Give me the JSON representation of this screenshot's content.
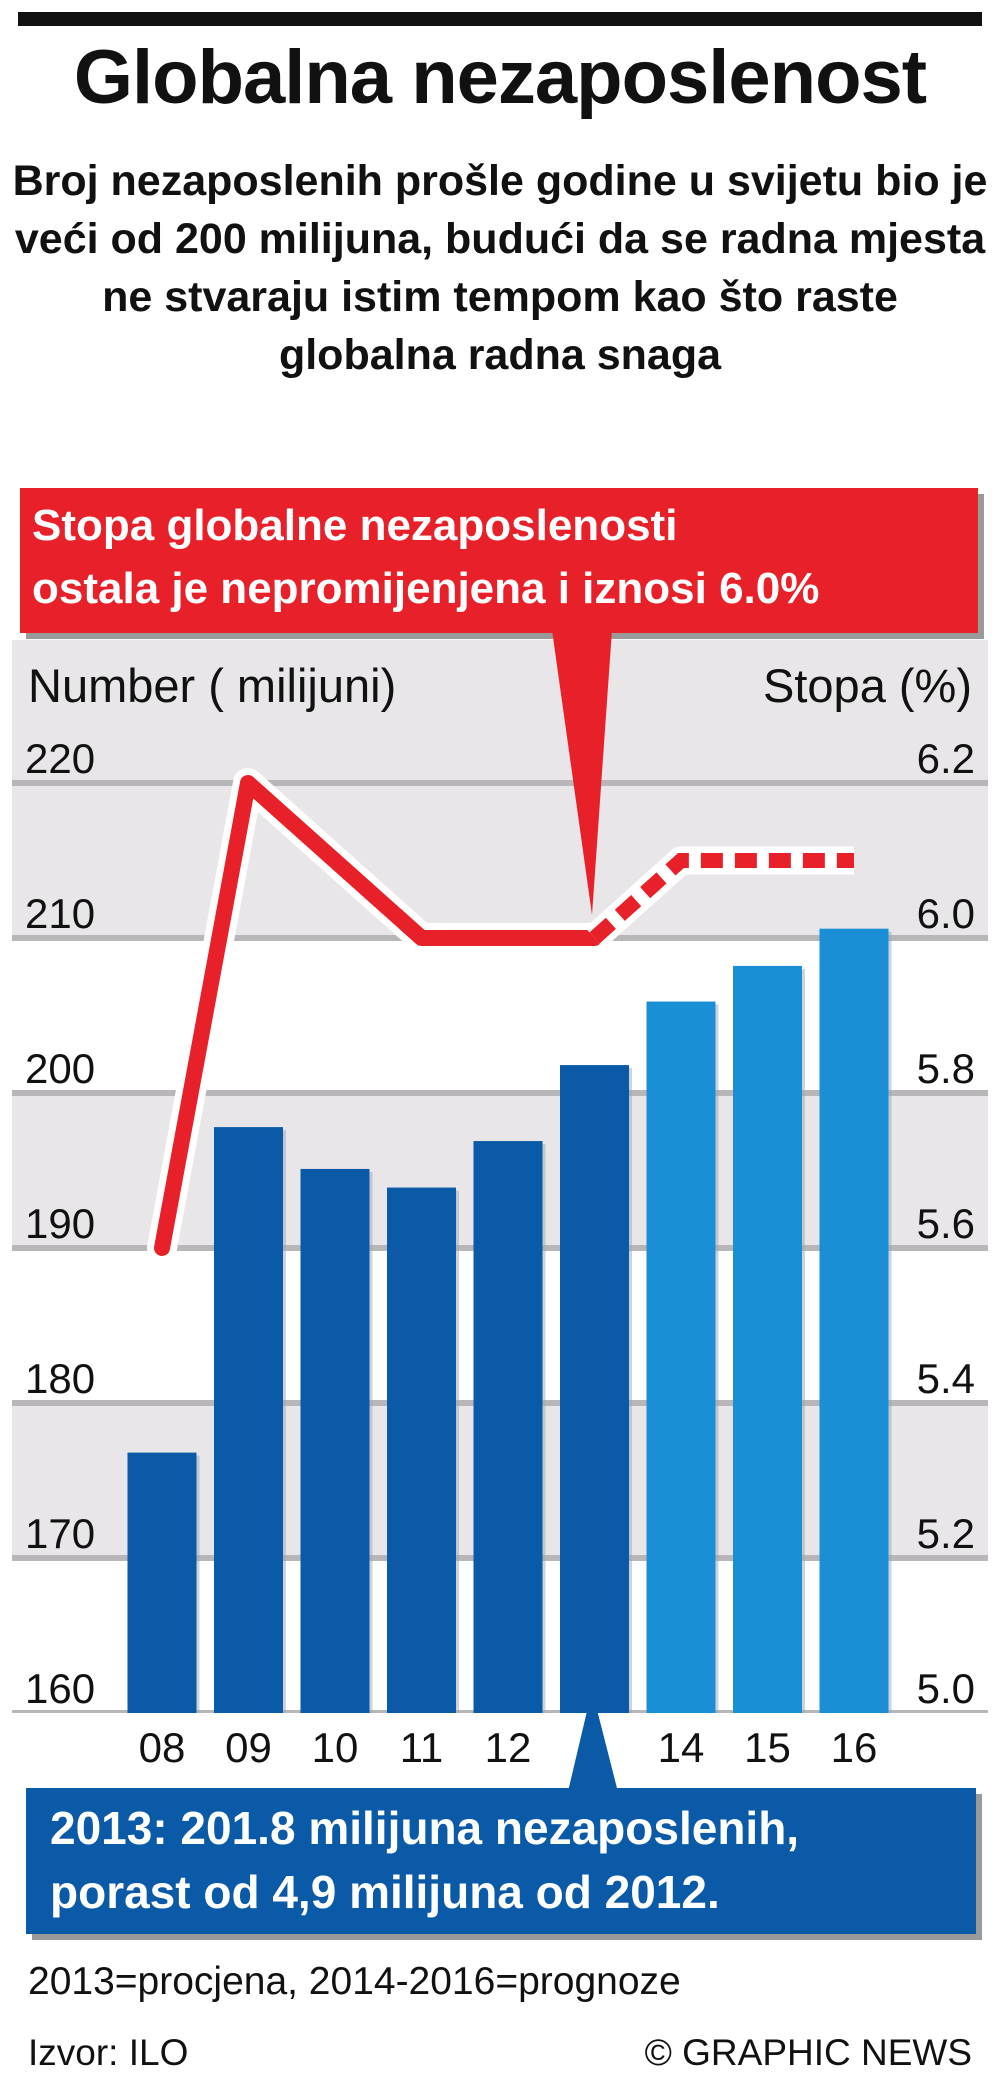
{
  "title": "Globalna nezaposlenost",
  "subtitle": "Broj nezaposlenih prošle godine u svijetu bio je veći od 200 milijuna, budući da se radna mjesta ne stvaraju istim tempom kao što raste globalna radna snaga",
  "callout_top": [
    "Stopa globalne nezaposlenosti",
    "ostala je nepromijenjena i iznosi 6.0%"
  ],
  "callout_bottom": [
    "2013: 201.8 milijuna nezaposlenih,",
    "porast od 4,9 milijuna od 2012."
  ],
  "footnote": "2013=procjena,  2014-2016=prognoze",
  "source": "Izvor: ILO",
  "credit": "© GRAPHIC NEWS",
  "colors": {
    "bar_actual": "#0a5aa8",
    "bar_forecast": "#1a8fd6",
    "line": "#e8202a",
    "callout_red": "#e8202a",
    "callout_blue": "#0a5aa8",
    "band": "#e8e6e8",
    "gridline": "#b9b6b9"
  },
  "chart_data": {
    "type": "bar",
    "categories": [
      "08",
      "09",
      "10",
      "11",
      "12",
      "13",
      "14",
      "15",
      "16"
    ],
    "ylabel": "Number ( milijuni)",
    "ylabel_right": "Stopa (%)",
    "ylim": [
      160,
      220
    ],
    "yticks": [
      "160",
      "170",
      "180",
      "190",
      "200",
      "210",
      "220"
    ],
    "ylim_right": [
      5.0,
      6.2
    ],
    "yticks_right": [
      "5.0",
      "5.2",
      "5.4",
      "5.6",
      "5.8",
      "6.0",
      "6.2"
    ],
    "series": [
      {
        "values": [
          176.8,
          197.8,
          195.1,
          193.9,
          196.9,
          201.8,
          205.9,
          208.2,
          210.6
        ],
        "forecast_from_index": 6
      },
      {
        "type": "line",
        "axis": "right",
        "values": [
          5.6,
          6.2,
          null,
          6.0,
          6.0,
          6.0,
          6.1,
          6.1,
          6.1
        ],
        "dashed_from_index": 5
      }
    ],
    "grid": true
  }
}
